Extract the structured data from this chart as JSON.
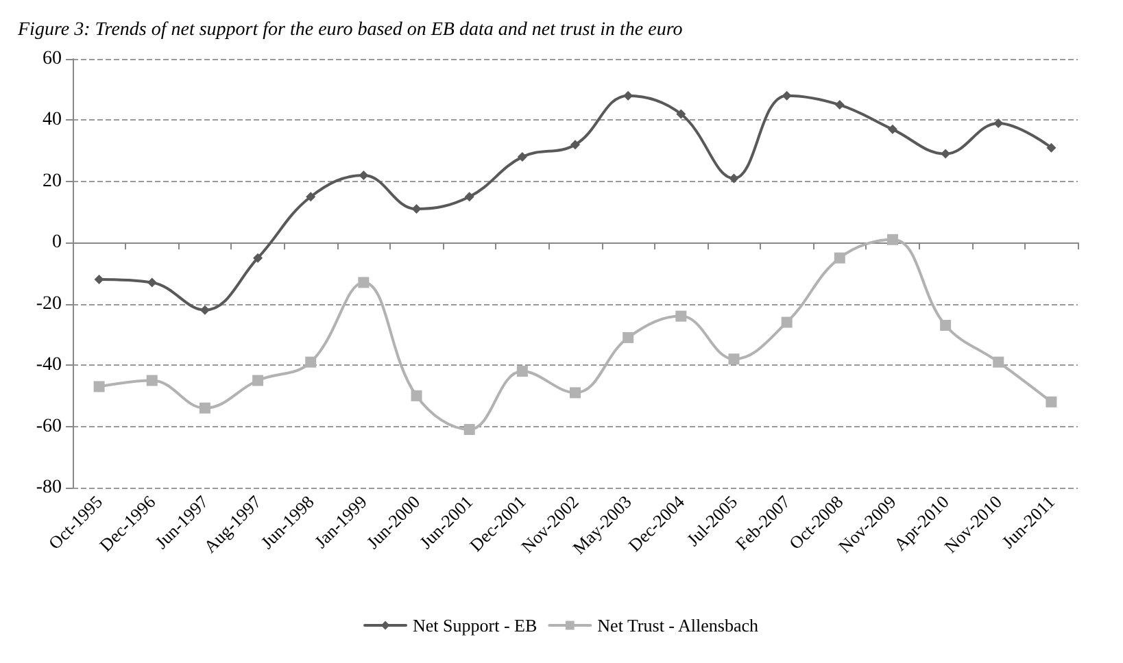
{
  "chart_data": {
    "type": "line",
    "title": "Figure 3: Trends of net support for the euro based on EB data and net trust in the euro",
    "categories": [
      "Oct-1995",
      "Dec-1996",
      "Jun-1997",
      "Aug-1997",
      "Jun-1998",
      "Jan-1999",
      "Jun-2000",
      "Jun-2001",
      "Dec-2001",
      "Nov-2002",
      "May-2003",
      "Dec-2004",
      "Jul-2005",
      "Feb-2007",
      "Oct-2008",
      "Nov-2009",
      "Apr-2010",
      "Nov-2010",
      "Jun-2011"
    ],
    "series": [
      {
        "name": "Net Support - EB",
        "color": "#595959",
        "marker": "diamond",
        "values": [
          -12,
          -13,
          -22,
          -5,
          15,
          22,
          11,
          15,
          28,
          32,
          48,
          42,
          21,
          48,
          45,
          37,
          29,
          39,
          31
        ]
      },
      {
        "name": "Net Trust - Allensbach",
        "color": "#b2b2b2",
        "marker": "square",
        "values": [
          -47,
          -45,
          -54,
          -45,
          -39,
          -13,
          -50,
          -61,
          -42,
          -49,
          -31,
          -24,
          -38,
          -26,
          -5,
          1,
          -27,
          -39,
          -52
        ]
      }
    ],
    "ylim": [
      -80,
      60
    ],
    "yticks": [
      -80,
      -60,
      -40,
      -20,
      0,
      20,
      40,
      60
    ],
    "grid": "y",
    "legend": "bottom",
    "line_style": "solid"
  }
}
